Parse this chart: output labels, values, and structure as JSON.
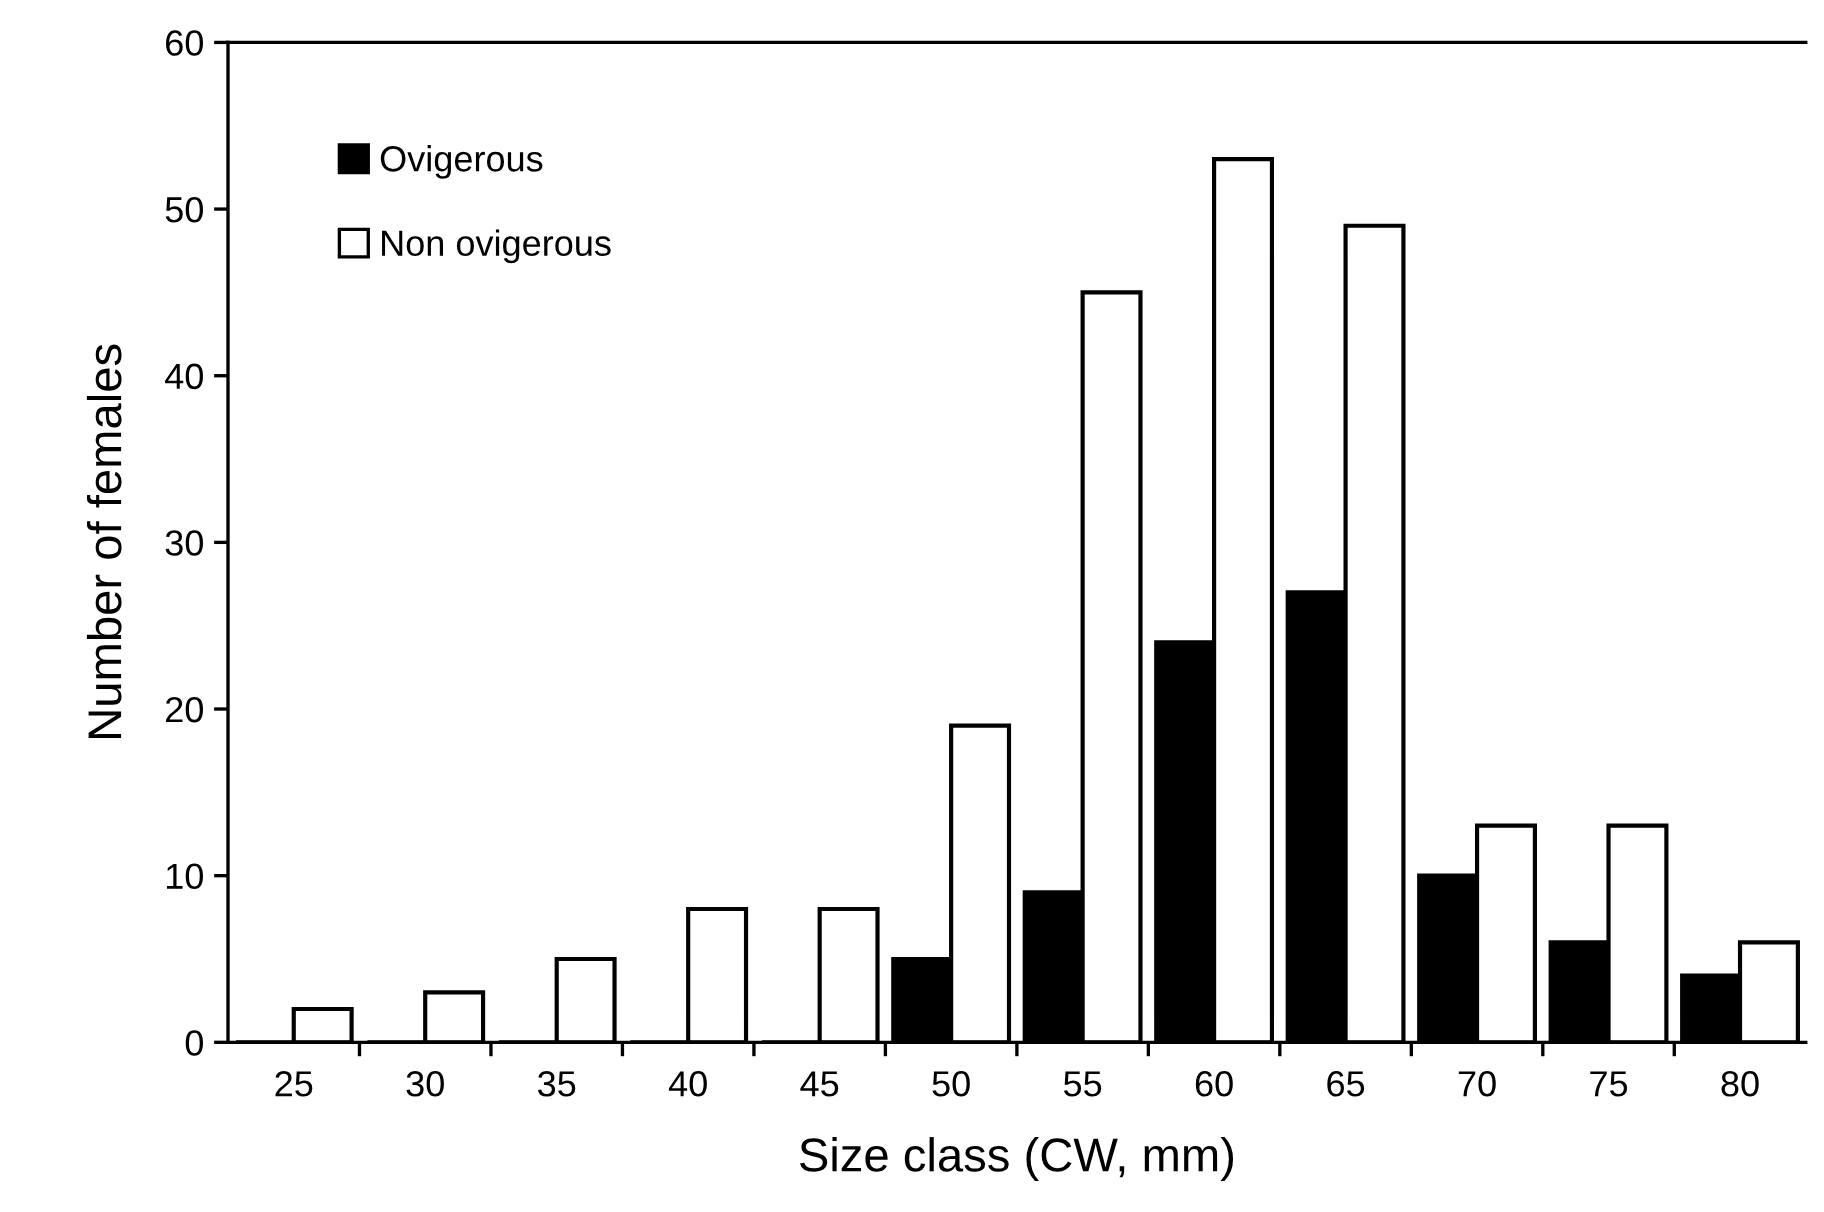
{
  "chart_data": {
    "type": "bar",
    "xlabel": "Size class (CW, mm)",
    "ylabel": "Number of females",
    "categories": [
      "25",
      "30",
      "35",
      "40",
      "45",
      "50",
      "55",
      "60",
      "65",
      "70",
      "75",
      "80"
    ],
    "series": [
      {
        "name": "Ovigerous",
        "color": "#000000",
        "values": [
          0,
          0,
          0,
          0,
          0,
          5,
          9,
          24,
          27,
          10,
          6,
          4
        ]
      },
      {
        "name": "Non ovigerous",
        "color": "#ffffff",
        "values": [
          2,
          3,
          5,
          8,
          8,
          19,
          45,
          53,
          49,
          13,
          13,
          6
        ]
      }
    ],
    "ylim": [
      0,
      60
    ],
    "yticks": [
      0,
      10,
      20,
      30,
      40,
      50,
      60
    ],
    "legend": "top left",
    "grid": false
  }
}
